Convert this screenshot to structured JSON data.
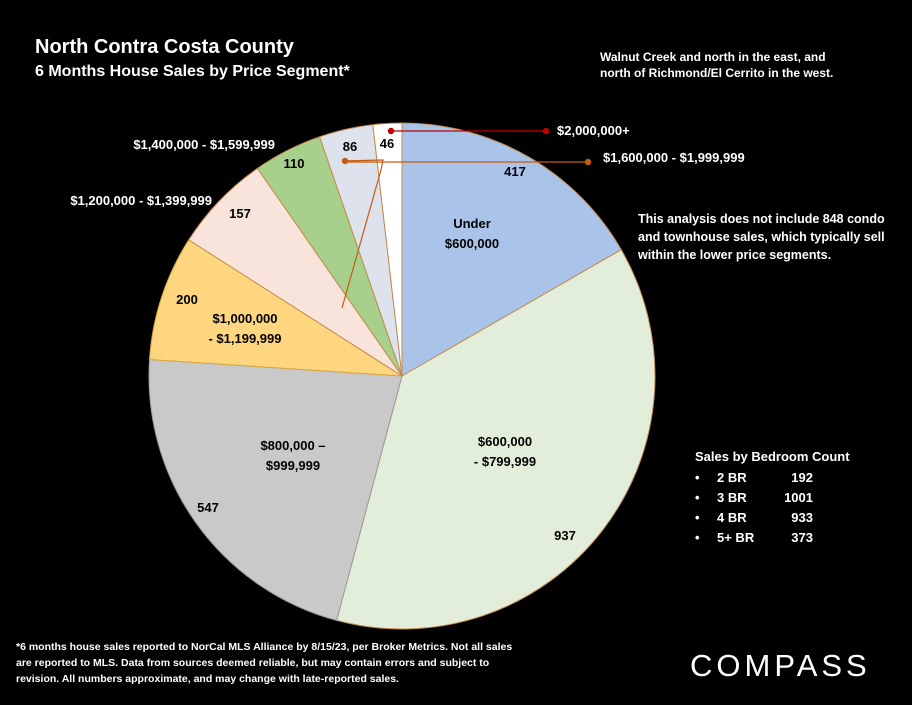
{
  "header": {
    "title": "North Contra Costa County",
    "subtitle": "6 Months House Sales by Price Segment*"
  },
  "notes": {
    "area": "Walnut Creek and north in the east, and\nnorth of Richmond/El Cerrito in the west.",
    "condo": "This analysis does not include 848 condo\nand townhouse sales, which typically sell\nwithin the lower price segments."
  },
  "bedrooms": {
    "title": "Sales by Bedroom Count",
    "items": [
      {
        "label": "2 BR",
        "count": "192"
      },
      {
        "label": "3 BR",
        "count": "1001"
      },
      {
        "label": "4 BR",
        "count": "933"
      },
      {
        "label": "5+ BR",
        "count": "373"
      }
    ]
  },
  "footnote": "*6 months house sales reported to NorCal MLS Alliance by 8/15/23, per Broker Metrics. Not all sales are reported to MLS. Data from sources deemed reliable, but may contain errors and subject to revision. All numbers approximate, and may change with late-reported sales.",
  "logo": "COMPASS",
  "chart_data": {
    "type": "pie",
    "title": "North Contra Costa County",
    "subtitle": "6 Months House Sales by Price Segment*",
    "start": "12 o'clock",
    "direction": "clockwise",
    "slices": [
      {
        "label": "Under\n$600,000",
        "value": 417,
        "color": "#a9c4e8"
      },
      {
        "label": "$600,000\n- $799,999",
        "value": 937,
        "color": "#e2eed9"
      },
      {
        "label": "$800,000 –\n$999,999",
        "value": 547,
        "color": "#c9c9c9"
      },
      {
        "label": "$1,000,000\n- $1,199,999",
        "value": 200,
        "color": "#fed67f"
      },
      {
        "label": "$1,200,000 - $1,399,999",
        "value": 157,
        "color": "#f8e4da"
      },
      {
        "label": "$1,400,000 - $1,599,999",
        "value": 110,
        "color": "#a8d08d"
      },
      {
        "label": "$1,600,000 - $1,999,999",
        "value": 86,
        "color": "#dde2ec"
      },
      {
        "label": "$2,000,000+",
        "value": 46,
        "color": "#ffffff"
      }
    ],
    "callout_colors": {
      "$2,000,000+": "#c00000",
      "$1,600,000 - $1,999,999": "#c55a11"
    }
  }
}
